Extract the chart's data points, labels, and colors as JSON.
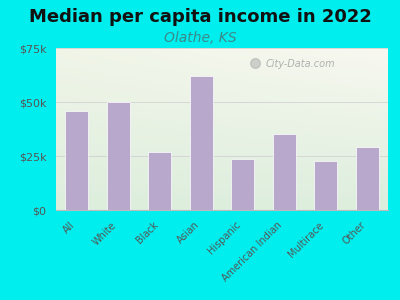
{
  "title": "Median per capita income in 2022",
  "subtitle": "Olathe, KS",
  "categories": [
    "All",
    "White",
    "Black",
    "Asian",
    "Hispanic",
    "American Indian",
    "Multirace",
    "Other"
  ],
  "values": [
    46000,
    50000,
    27000,
    62000,
    23500,
    35000,
    22500,
    29000
  ],
  "bar_color": "#b8a8cc",
  "bar_edge_color": "#ffffff",
  "background_color": "#00eeee",
  "plot_bg_topleft": "#f0f5e8",
  "plot_bg_topright": "#f8f8f0",
  "plot_bg_bottom": "#ddeedd",
  "title_color": "#111111",
  "subtitle_color": "#3a8a8a",
  "tick_color": "#555555",
  "ylim": [
    0,
    75000
  ],
  "yticks": [
    0,
    25000,
    50000,
    75000
  ],
  "ytick_labels": [
    "$0",
    "$25k",
    "$50k",
    "$75k"
  ],
  "title_fontsize": 13,
  "subtitle_fontsize": 10,
  "watermark": "City-Data.com"
}
